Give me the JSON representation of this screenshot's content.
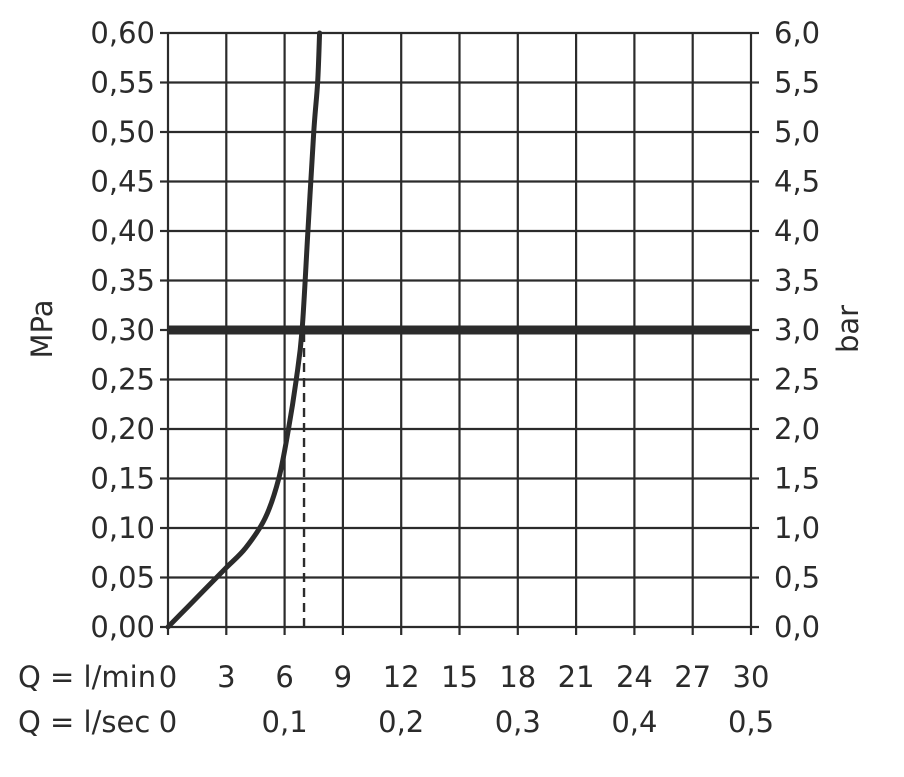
{
  "chart_data": {
    "type": "line",
    "title": "",
    "left_axis": {
      "label": "MPa",
      "ylim": [
        0,
        0.6
      ],
      "ticks": [
        "0,00",
        "0,05",
        "0,10",
        "0,15",
        "0,20",
        "0,25",
        "0,30",
        "0,35",
        "0,40",
        "0,45",
        "0,50",
        "0,55",
        "0,60"
      ]
    },
    "right_axis": {
      "label": "bar",
      "ylim": [
        0,
        6
      ],
      "ticks": [
        "0,0",
        "0,5",
        "1,0",
        "1,5",
        "2,0",
        "2,5",
        "3,0",
        "3,5",
        "4,0",
        "4,5",
        "5,0",
        "5,5",
        "6,0"
      ]
    },
    "x_axis_lmin": {
      "label": "Q = l/min",
      "xlim": [
        0,
        30
      ],
      "ticks": [
        {
          "value": 0,
          "label": "0"
        },
        {
          "value": 3,
          "label": "3"
        },
        {
          "value": 6,
          "label": "6"
        },
        {
          "value": 9,
          "label": "9"
        },
        {
          "value": 12,
          "label": "12"
        },
        {
          "value": 15,
          "label": "15"
        },
        {
          "value": 18,
          "label": "18"
        },
        {
          "value": 21,
          "label": "21"
        },
        {
          "value": 24,
          "label": "24"
        },
        {
          "value": 27,
          "label": "27"
        },
        {
          "value": 30,
          "label": "30"
        }
      ]
    },
    "x_axis_lsec": {
      "label": "Q = l/sec",
      "ticks": [
        {
          "value": 0,
          "label": "0"
        },
        {
          "value": 6,
          "label": "0,1"
        },
        {
          "value": 12,
          "label": "0,2"
        },
        {
          "value": 18,
          "label": "0,3"
        },
        {
          "value": 24,
          "label": "0,4"
        },
        {
          "value": 30,
          "label": "0,5"
        }
      ]
    },
    "grid": true,
    "series": [
      {
        "color": "#2b2b2b",
        "x": [
          0,
          1,
          2,
          3,
          4,
          5,
          5.7,
          6.2,
          6.6,
          6.9,
          7.2,
          7.5,
          7.7,
          7.8
        ],
        "y": [
          0,
          0.02,
          0.04,
          0.06,
          0.08,
          0.11,
          0.15,
          0.2,
          0.25,
          0.3,
          0.4,
          0.5,
          0.55,
          0.6
        ]
      }
    ],
    "reference_line": {
      "y": 0.3,
      "color": "#2b2b2b"
    },
    "dashed_marker": {
      "x": 7,
      "y_from": 0,
      "y_to": 0.3
    }
  }
}
